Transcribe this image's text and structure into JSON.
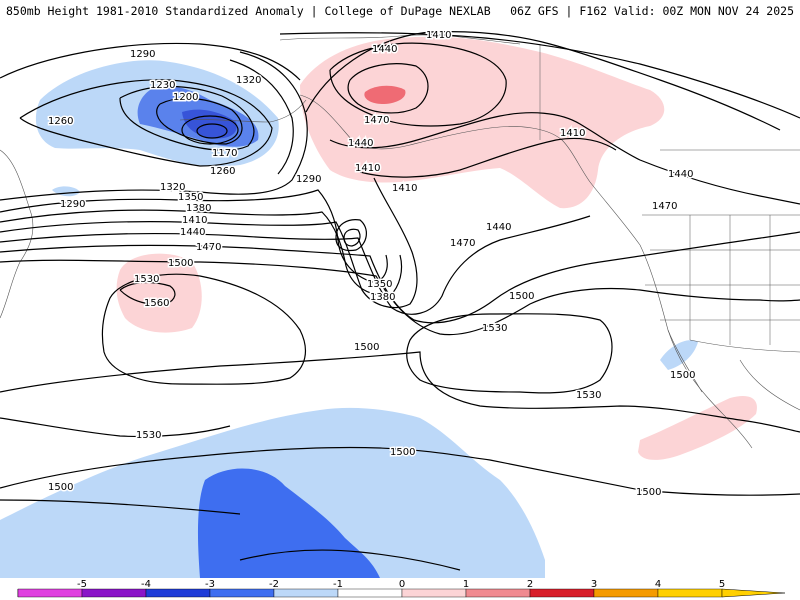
{
  "header": {
    "title": "850mb Height 1981-2010 Standardized Anomaly | College of DuPage NEXLAB",
    "run_info": "06Z GFS | F162 Valid: 00Z MON NOV 24 2025"
  },
  "colorbar": {
    "ticks": [
      "-5",
      "-4",
      "-3",
      "-2",
      "-1",
      "0",
      "1",
      "2",
      "3",
      "4",
      "5"
    ],
    "colors": [
      "#e040e0",
      "#8a14c8",
      "#1e3cd8",
      "#3e6ef0",
      "#bcd8f8",
      "#ffffff",
      "#fcd4d6",
      "#f08a90",
      "#d81e2a",
      "#f59b00",
      "#ffd000"
    ]
  },
  "contour_labels": [
    {
      "text": "1290",
      "name": "label-1290-nw"
    },
    {
      "text": "1230",
      "name": "label-1230"
    },
    {
      "text": "1200",
      "name": "label-1200"
    },
    {
      "text": "1260",
      "name": "label-1260-west"
    },
    {
      "text": "1170",
      "name": "label-1170"
    },
    {
      "text": "1260",
      "name": "label-1260-south"
    },
    {
      "text": "1320",
      "name": "label-1320-north"
    },
    {
      "text": "1290",
      "name": "label-1290-east"
    },
    {
      "text": "1290",
      "name": "label-1290-west"
    },
    {
      "text": "1320",
      "name": "label-1320-south"
    },
    {
      "text": "1350",
      "name": "label-1350-west"
    },
    {
      "text": "1380",
      "name": "label-1380-west"
    },
    {
      "text": "1410",
      "name": "label-1410-west"
    },
    {
      "text": "1440",
      "name": "label-1440-west"
    },
    {
      "text": "1470",
      "name": "label-1470-west"
    },
    {
      "text": "1500",
      "name": "label-1500-west"
    },
    {
      "text": "1530",
      "name": "label-1530-high"
    },
    {
      "text": "1560",
      "name": "label-1560"
    },
    {
      "text": "1350",
      "name": "label-1350-low"
    },
    {
      "text": "1380",
      "name": "label-1380-low"
    },
    {
      "text": "1410",
      "name": "label-1410-top"
    },
    {
      "text": "1440",
      "name": "label-1440-ridge"
    },
    {
      "text": "1470",
      "name": "label-1470-ridge"
    },
    {
      "text": "1440",
      "name": "label-1440-ridge-south"
    },
    {
      "text": "1410",
      "name": "label-1410-ridge-south"
    },
    {
      "text": "1410",
      "name": "label-1410-gulf"
    },
    {
      "text": "1410",
      "name": "label-1410-coast"
    },
    {
      "text": "1440",
      "name": "label-1440-coast"
    },
    {
      "text": "1470",
      "name": "label-1470-coast"
    },
    {
      "text": "1440",
      "name": "label-1440-mid"
    },
    {
      "text": "1470",
      "name": "label-1470-mid"
    },
    {
      "text": "1500",
      "name": "label-1500-mid"
    },
    {
      "text": "1530",
      "name": "label-1530-mid"
    },
    {
      "text": "1500",
      "name": "label-1500-center"
    },
    {
      "text": "1530",
      "name": "label-1530-southwest"
    },
    {
      "text": "1530",
      "name": "label-1530-east"
    },
    {
      "text": "1500",
      "name": "label-1500-mexico"
    },
    {
      "text": "1500",
      "name": "label-1500-south"
    },
    {
      "text": "1500",
      "name": "label-1500-southwest"
    },
    {
      "text": "1500",
      "name": "label-1500-southeast"
    }
  ]
}
